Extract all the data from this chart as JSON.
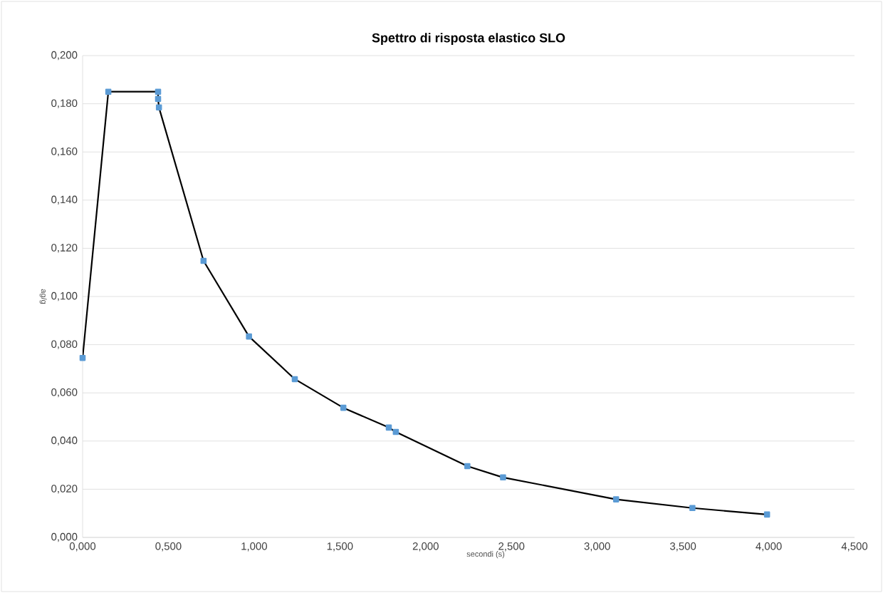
{
  "chart_data": {
    "type": "line",
    "title": "Spettro di risposta elastico SLO",
    "xlabel": "secondi (s)",
    "ylabel": "ag/g",
    "x": [
      0.0,
      0.15,
      0.44,
      0.44,
      0.445,
      0.705,
      0.97,
      1.237,
      1.52,
      1.785,
      1.826,
      2.243,
      2.451,
      3.11,
      3.555,
      3.99
    ],
    "series": [
      {
        "color": "#000000",
        "values": [
          0.0745,
          0.185,
          0.185,
          0.182,
          0.1785,
          0.1148,
          0.0834,
          0.0657,
          0.0538,
          0.0456,
          0.0438,
          0.0296,
          0.0249,
          0.0158,
          0.0122,
          0.0095
        ]
      }
    ],
    "marker": "square",
    "grid": "y",
    "xlim": [
      0,
      4.5
    ],
    "ylim": [
      0,
      0.2
    ],
    "xticks": [
      {
        "value": 0,
        "label": "0,000"
      },
      {
        "value": 0.5,
        "label": "0,500"
      },
      {
        "value": 1,
        "label": "1,000"
      },
      {
        "value": 1.5,
        "label": "1,500"
      },
      {
        "value": 2,
        "label": "2,000"
      },
      {
        "value": 2.5,
        "label": "2,500"
      },
      {
        "value": 3,
        "label": "3,000"
      },
      {
        "value": 3.5,
        "label": "3,500"
      },
      {
        "value": 4,
        "label": "4,000"
      },
      {
        "value": 4.5,
        "label": "4,500"
      }
    ],
    "yticks": [
      {
        "value": 0,
        "label": "0,000"
      },
      {
        "value": 0.02,
        "label": "0,020"
      },
      {
        "value": 0.04,
        "label": "0,040"
      },
      {
        "value": 0.06,
        "label": "0,060"
      },
      {
        "value": 0.08,
        "label": "0,080"
      },
      {
        "value": 0.1,
        "label": "0,100"
      },
      {
        "value": 0.12,
        "label": "0,120"
      },
      {
        "value": 0.14,
        "label": "0,140"
      },
      {
        "value": 0.16,
        "label": "0,160"
      },
      {
        "value": 0.18,
        "label": "0,180"
      },
      {
        "value": 0.2,
        "label": "0,200"
      }
    ]
  }
}
